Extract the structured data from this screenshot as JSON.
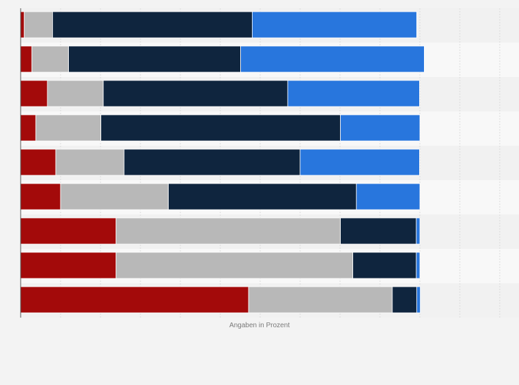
{
  "chart_data": {
    "type": "bar",
    "orientation": "horizontal",
    "stacked": true,
    "title": "",
    "xlabel": "Angaben in Prozent",
    "ylabel": "",
    "xlim": [
      0,
      120
    ],
    "grid": true,
    "categories": [
      "",
      "",
      "",
      "",
      "",
      "",
      "",
      "",
      ""
    ],
    "series": [
      {
        "color": "#a30a0a",
        "values": [
          0.9,
          2.8,
          6.7,
          3.8,
          8.8,
          10.0,
          23.9,
          23.9,
          57.1
        ]
      },
      {
        "color": "#b8b8b8",
        "values": [
          7.1,
          9.2,
          14.0,
          16.3,
          17.1,
          27.0,
          56.2,
          59.3,
          36.0
        ]
      },
      {
        "color": "#0f253e",
        "values": [
          50.0,
          43.1,
          46.2,
          60.0,
          44.1,
          47.1,
          19.0,
          15.9,
          6.1
        ]
      },
      {
        "color": "#2876dd",
        "values": [
          41.2,
          46.0,
          33.0,
          19.9,
          29.9,
          15.9,
          0.9,
          0.9,
          0.9
        ]
      }
    ]
  }
}
